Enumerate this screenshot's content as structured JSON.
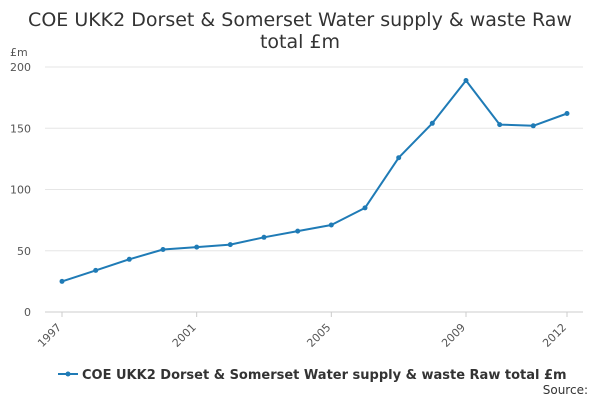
{
  "chart_data": {
    "type": "line",
    "title_lines": [
      "COE UKK2 Dorset & Somerset Water supply & waste Raw",
      "total £m"
    ],
    "ylabel": "£m",
    "ylim": [
      0,
      200
    ],
    "yticks": [
      0,
      50,
      100,
      150,
      200
    ],
    "xlim": [
      1997,
      2012
    ],
    "xticks": [
      1997,
      2001,
      2005,
      2009,
      2012
    ],
    "grid": "horizontal",
    "legend_position": "bottom",
    "color": "#1f7bb6",
    "series": [
      {
        "name": "COE UKK2 Dorset & Somerset Water supply & waste Raw total £m",
        "x": [
          1997,
          1998,
          1999,
          2000,
          2001,
          2002,
          2003,
          2004,
          2005,
          2006,
          2007,
          2008,
          2009,
          2010,
          2011,
          2012
        ],
        "values": [
          25,
          34,
          43,
          51,
          53,
          55,
          61,
          66,
          71,
          85,
          126,
          154,
          189,
          153,
          152,
          162
        ]
      }
    ]
  },
  "source_label": "Source:"
}
